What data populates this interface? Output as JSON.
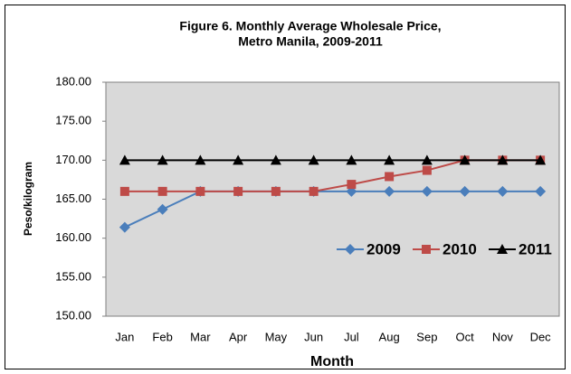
{
  "chart_data": {
    "type": "line",
    "title": "Figure 6. Monthly Average Wholesale Price,",
    "subtitle": "Metro Manila, 2009-2011",
    "x_label": "Month",
    "y_label": "Peso/kilogram",
    "categories": [
      "Jan",
      "Feb",
      "Mar",
      "Apr",
      "May",
      "Jun",
      "Jul",
      "Aug",
      "Sep",
      "Oct",
      "Nov",
      "Dec"
    ],
    "series": [
      {
        "name": "2009",
        "color": "#4a7ebb",
        "marker": "diamond",
        "values": [
          161.4,
          163.7,
          166,
          166,
          166,
          166,
          166,
          166,
          166,
          166,
          166,
          166
        ]
      },
      {
        "name": "2010",
        "color": "#be4b48",
        "marker": "square",
        "values": [
          166,
          166,
          166,
          166,
          166,
          166,
          166.9,
          167.9,
          168.7,
          170,
          170,
          170
        ]
      },
      {
        "name": "2011",
        "color": "#000000",
        "marker": "triangle",
        "values": [
          170,
          170,
          170,
          170,
          170,
          170,
          170,
          170,
          170,
          170,
          170,
          170
        ]
      }
    ],
    "ylim": [
      150,
      180
    ],
    "yticks": [
      {
        "value": 150,
        "label": "150.00"
      },
      {
        "value": 155,
        "label": "155.00"
      },
      {
        "value": 160,
        "label": "160.00"
      },
      {
        "value": 165,
        "label": "165.00"
      },
      {
        "value": 170,
        "label": "170.00"
      },
      {
        "value": 175,
        "label": "175.00"
      },
      {
        "value": 180,
        "label": "180.00"
      }
    ],
    "grid": false,
    "legend": "lower right"
  }
}
